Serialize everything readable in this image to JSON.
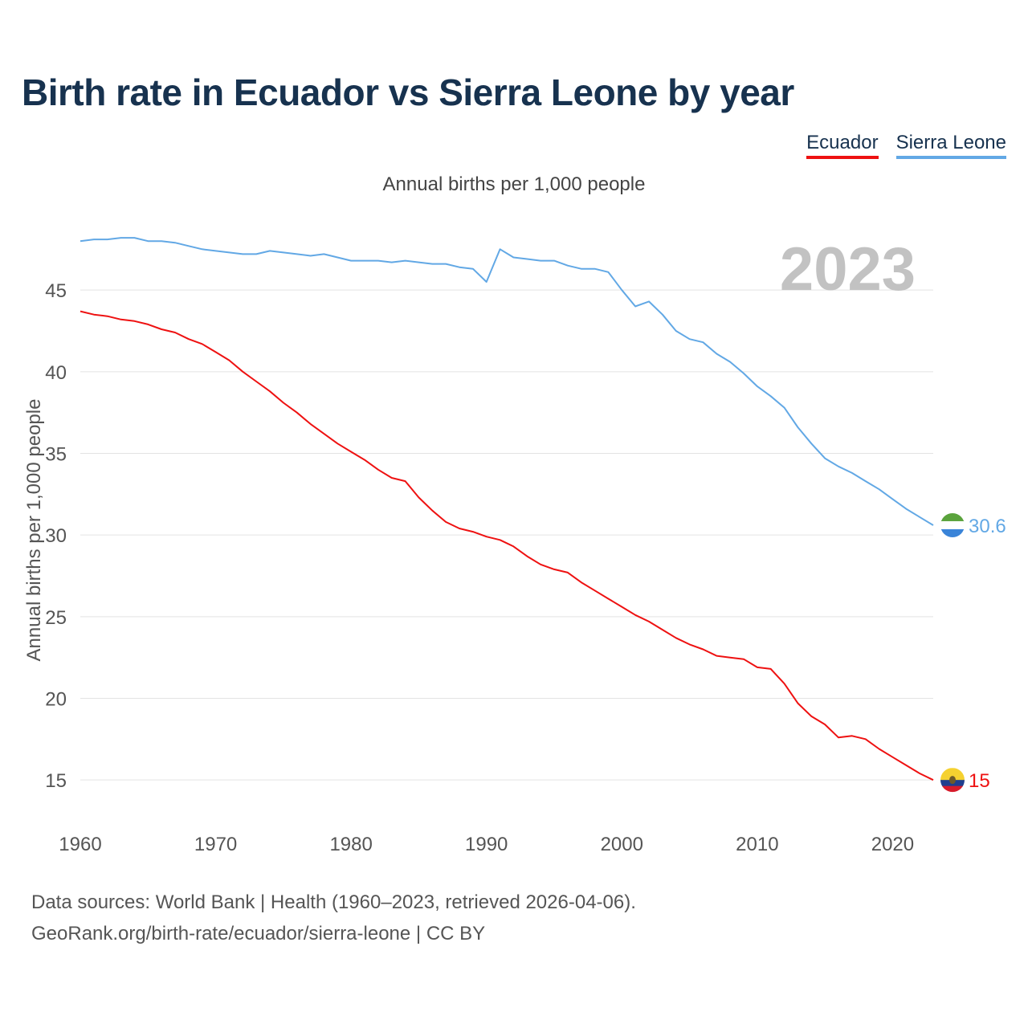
{
  "title": "Birth rate in Ecuador vs Sierra Leone by year",
  "subtitle": "Annual births per 1,000 people",
  "legend": [
    {
      "name": "Ecuador",
      "color": "#ee1111"
    },
    {
      "name": "Sierra Leone",
      "color": "#62a8e5"
    }
  ],
  "year_label": "2023",
  "footer": {
    "line1": "Data sources: World Bank | Health (1960–2023, retrieved 2026-04-06).",
    "line2": "GeoRank.org/birth-rate/ecuador/sierra-leone | CC BY"
  },
  "chart_data": {
    "type": "line",
    "title": "Birth rate in Ecuador vs Sierra Leone by year",
    "subtitle": "Annual births per 1,000 people",
    "xlabel": "",
    "ylabel": "Annual births per 1,000 people",
    "xlim": [
      1960,
      2023
    ],
    "ylim": [
      12.5,
      48.5
    ],
    "x_ticks": [
      1960,
      1970,
      1980,
      1990,
      2000,
      2010,
      2020
    ],
    "y_ticks": [
      15,
      20,
      25,
      30,
      35,
      40,
      45
    ],
    "grid": true,
    "x": [
      1960,
      1961,
      1962,
      1963,
      1964,
      1965,
      1966,
      1967,
      1968,
      1969,
      1970,
      1971,
      1972,
      1973,
      1974,
      1975,
      1976,
      1977,
      1978,
      1979,
      1980,
      1981,
      1982,
      1983,
      1984,
      1985,
      1986,
      1987,
      1988,
      1989,
      1990,
      1991,
      1992,
      1993,
      1994,
      1995,
      1996,
      1997,
      1998,
      1999,
      2000,
      2001,
      2002,
      2003,
      2004,
      2005,
      2006,
      2007,
      2008,
      2009,
      2010,
      2011,
      2012,
      2013,
      2014,
      2015,
      2016,
      2017,
      2018,
      2019,
      2020,
      2021,
      2022,
      2023
    ],
    "series": [
      {
        "name": "Ecuador",
        "color": "#ee1111",
        "end_label": "15",
        "flag": "ecuador-flag-icon",
        "values": [
          43.7,
          43.5,
          43.4,
          43.2,
          43.1,
          42.9,
          42.6,
          42.4,
          42.0,
          41.7,
          41.2,
          40.7,
          40.0,
          39.4,
          38.8,
          38.1,
          37.5,
          36.8,
          36.2,
          35.6,
          35.1,
          34.6,
          34.0,
          33.5,
          33.3,
          32.3,
          31.5,
          30.8,
          30.4,
          30.2,
          29.9,
          29.7,
          29.3,
          28.7,
          28.2,
          27.9,
          27.7,
          27.1,
          26.6,
          26.1,
          25.6,
          25.1,
          24.7,
          24.2,
          23.7,
          23.3,
          23.0,
          22.6,
          22.5,
          22.4,
          21.9,
          21.8,
          20.9,
          19.7,
          18.9,
          18.4,
          17.6,
          17.7,
          17.5,
          16.9,
          16.4,
          15.9,
          15.4,
          15.0
        ]
      },
      {
        "name": "Sierra Leone",
        "color": "#62a8e5",
        "end_label": "30.6",
        "flag": "sierra-leone-flag-icon",
        "values": [
          48.0,
          48.1,
          48.1,
          48.2,
          48.2,
          48.0,
          48.0,
          47.9,
          47.7,
          47.5,
          47.4,
          47.3,
          47.2,
          47.2,
          47.4,
          47.3,
          47.2,
          47.1,
          47.2,
          47.0,
          46.8,
          46.8,
          46.8,
          46.7,
          46.8,
          46.7,
          46.6,
          46.6,
          46.4,
          46.3,
          45.5,
          47.5,
          47.0,
          46.9,
          46.8,
          46.8,
          46.5,
          46.3,
          46.3,
          46.1,
          45.0,
          44.0,
          44.3,
          43.5,
          42.5,
          42.0,
          41.8,
          41.1,
          40.6,
          39.9,
          39.1,
          38.5,
          37.8,
          36.6,
          35.6,
          34.7,
          34.2,
          33.8,
          33.3,
          32.8,
          32.2,
          31.6,
          31.1,
          30.6
        ]
      }
    ]
  }
}
